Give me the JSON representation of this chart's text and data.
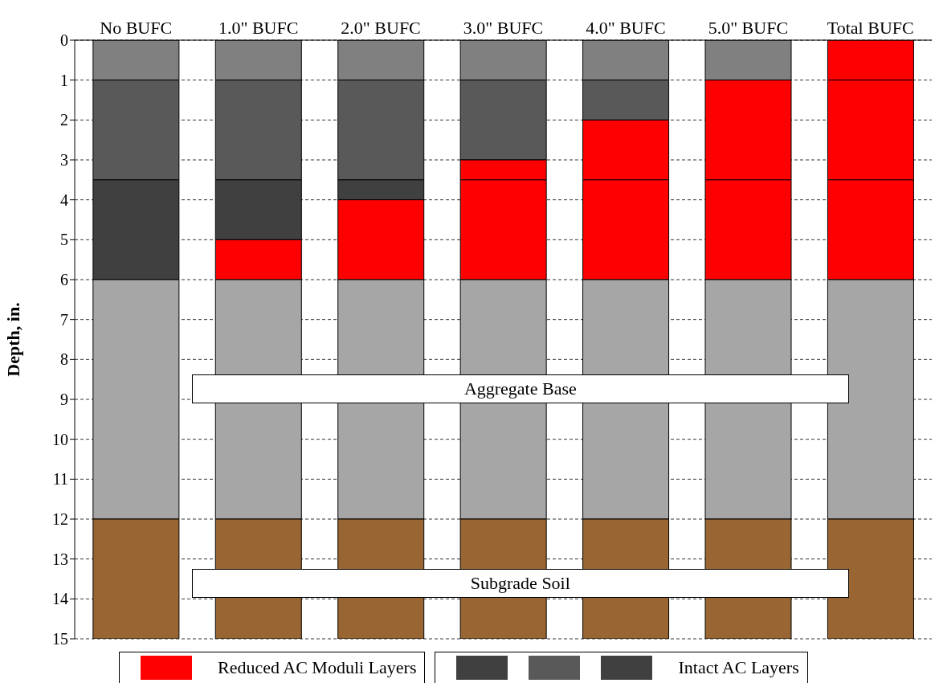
{
  "chart_data": {
    "type": "bar",
    "stacked": true,
    "ylabel": "Depth, in.",
    "categories": [
      "No BUFC",
      "1.0\" BUFC",
      "2.0\" BUFC",
      "3.0\" BUFC",
      "4.0\" BUFC",
      "5.0\" BUFC",
      "Total BUFC"
    ],
    "series": [
      {
        "color": "#808080",
        "colors": [
          "#808080",
          "#808080",
          "#808080",
          "#808080",
          "#808080",
          "#808080",
          "#ff0000"
        ],
        "values": [
          1,
          1,
          1,
          1,
          1,
          1,
          1
        ]
      },
      {
        "color": "#595959",
        "values": [
          2.5,
          2.5,
          2.5,
          2,
          1,
          0,
          0
        ]
      },
      {
        "name": "Reduced AC Moduli Layers",
        "color": "#ff0000",
        "values": [
          0,
          0,
          0,
          0.5,
          1.5,
          2.5,
          2.5
        ]
      },
      {
        "name": "Intact AC Layers",
        "color": "#404040",
        "values": [
          2.5,
          1.5,
          0.5,
          0,
          0,
          0,
          0
        ]
      },
      {
        "color": "#ff0000",
        "values": [
          0,
          1,
          2,
          2.5,
          2.5,
          2.5,
          2.5
        ]
      },
      {
        "color": "#a6a6a6",
        "values": [
          6,
          6,
          6,
          6,
          6,
          6,
          6
        ]
      },
      {
        "color": "#996633",
        "values": [
          3,
          3,
          3,
          3,
          3,
          3,
          3
        ]
      }
    ],
    "ylim": [
      15,
      0
    ],
    "yticks": [
      0,
      1,
      2,
      3,
      4,
      5,
      6,
      7,
      8,
      9,
      10,
      11,
      12,
      13,
      14,
      15
    ],
    "grid": "y",
    "legend": "bottom",
    "annotations": [
      "Aggregate Base",
      "Subgrade Soil"
    ]
  }
}
